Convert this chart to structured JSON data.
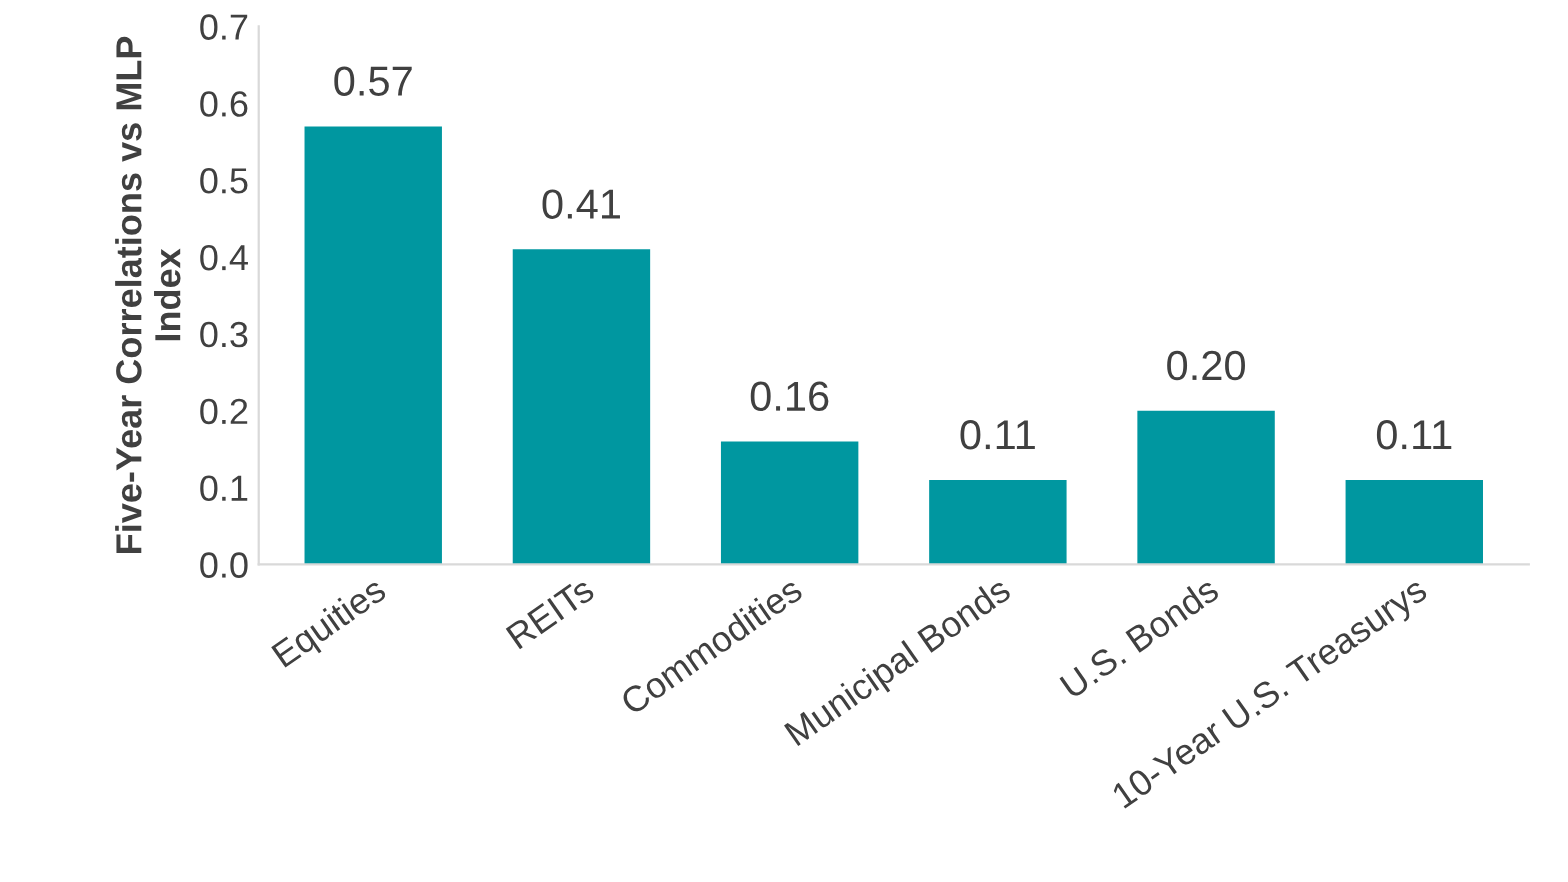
{
  "chart_data": {
    "type": "bar",
    "ylabel": "Five-Year Correlations vs MLP Index",
    "categories": [
      "Equities",
      "REITs",
      "Commodities",
      "Municipal Bonds",
      "U.S. Bonds",
      "10-Year U.S. Treasurys"
    ],
    "values": [
      0.57,
      0.41,
      0.16,
      0.11,
      0.2,
      0.11
    ],
    "value_labels": [
      "0.57",
      "0.41",
      "0.16",
      "0.11",
      "0.20",
      "0.11"
    ],
    "color": "#0097a0",
    "ylim": [
      0,
      0.7
    ],
    "yticks": [
      {
        "value": 0,
        "label": "0.0"
      },
      0.1,
      0.2,
      0.3,
      0.4,
      0.5,
      0.6,
      0.7
    ],
    "grid": false,
    "legend": false
  }
}
